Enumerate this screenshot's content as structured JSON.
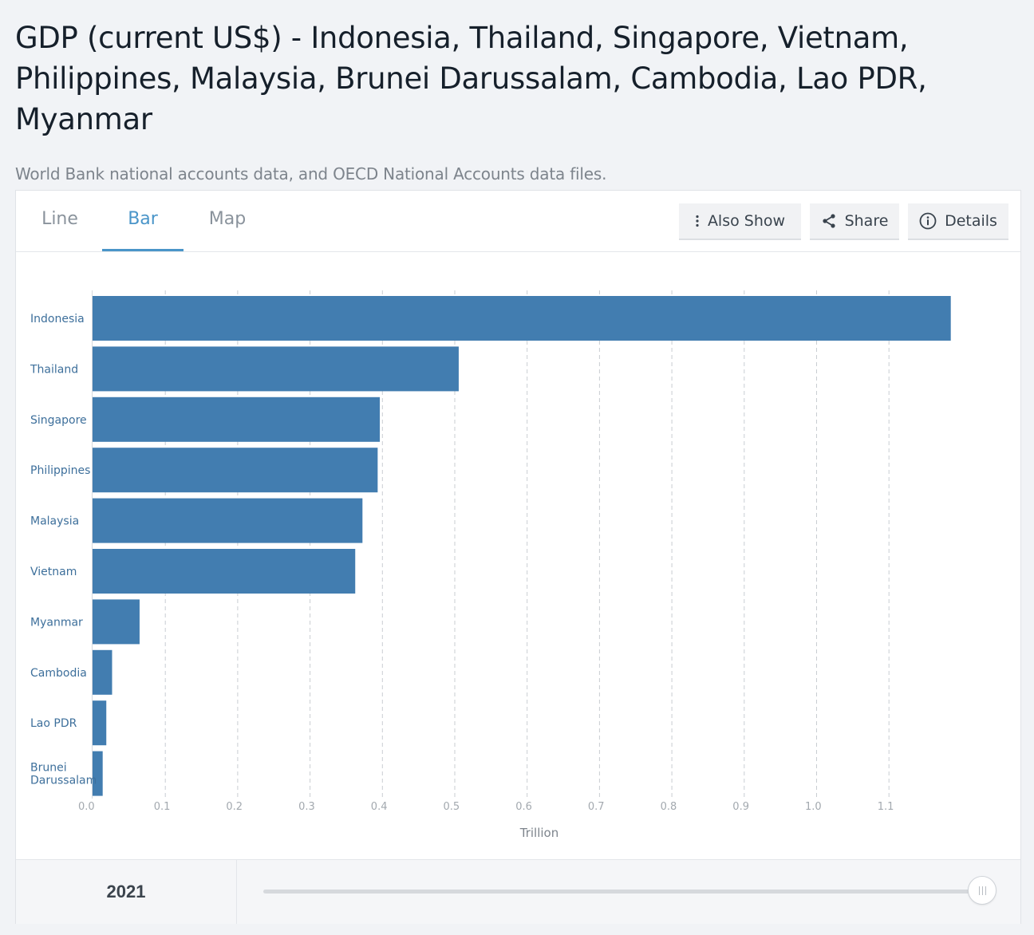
{
  "header": {
    "title": "GDP (current US$) - Indonesia, Thailand, Singapore, Vietnam, Philippines, Malaysia, Brunei Darussalam, Cambodia, Lao PDR, Myanmar",
    "source": "World Bank national accounts data, and OECD National Accounts data files."
  },
  "tabs": [
    {
      "label": "Line",
      "active": false
    },
    {
      "label": "Bar",
      "active": true
    },
    {
      "label": "Map",
      "active": false
    }
  ],
  "toolbar": {
    "also_show_label": "Also Show",
    "share_label": "Share",
    "details_label": "Details"
  },
  "footer": {
    "year": "2021",
    "slider_position": 1.0
  },
  "colors": {
    "bar": "#427db0",
    "accent": "#4a95c9",
    "label": "#3d6f9b",
    "tick": "#a3a9af",
    "grid": "#c9cdd2"
  },
  "chart_data": {
    "type": "bar",
    "orientation": "horizontal",
    "categories": [
      "Indonesia",
      "Thailand",
      "Singapore",
      "Philippines",
      "Malaysia",
      "Vietnam",
      "Myanmar",
      "Cambodia",
      "Lao PDR",
      "Brunei Darussalam"
    ],
    "series": [
      {
        "values": [
          1.186,
          0.506,
          0.397,
          0.394,
          0.373,
          0.363,
          0.065,
          0.027,
          0.019,
          0.014
        ]
      }
    ],
    "unit": "Trillion",
    "xlabel": "Trillion",
    "ylabel": "",
    "xlim": [
      0,
      1.2
    ],
    "xticks": [
      "0.0",
      "0.1",
      "0.2",
      "0.3",
      "0.4",
      "0.5",
      "0.6",
      "0.7",
      "0.8",
      "0.9",
      "1.0",
      "1.1"
    ],
    "grid": "vertical dashed",
    "year": "2021"
  }
}
